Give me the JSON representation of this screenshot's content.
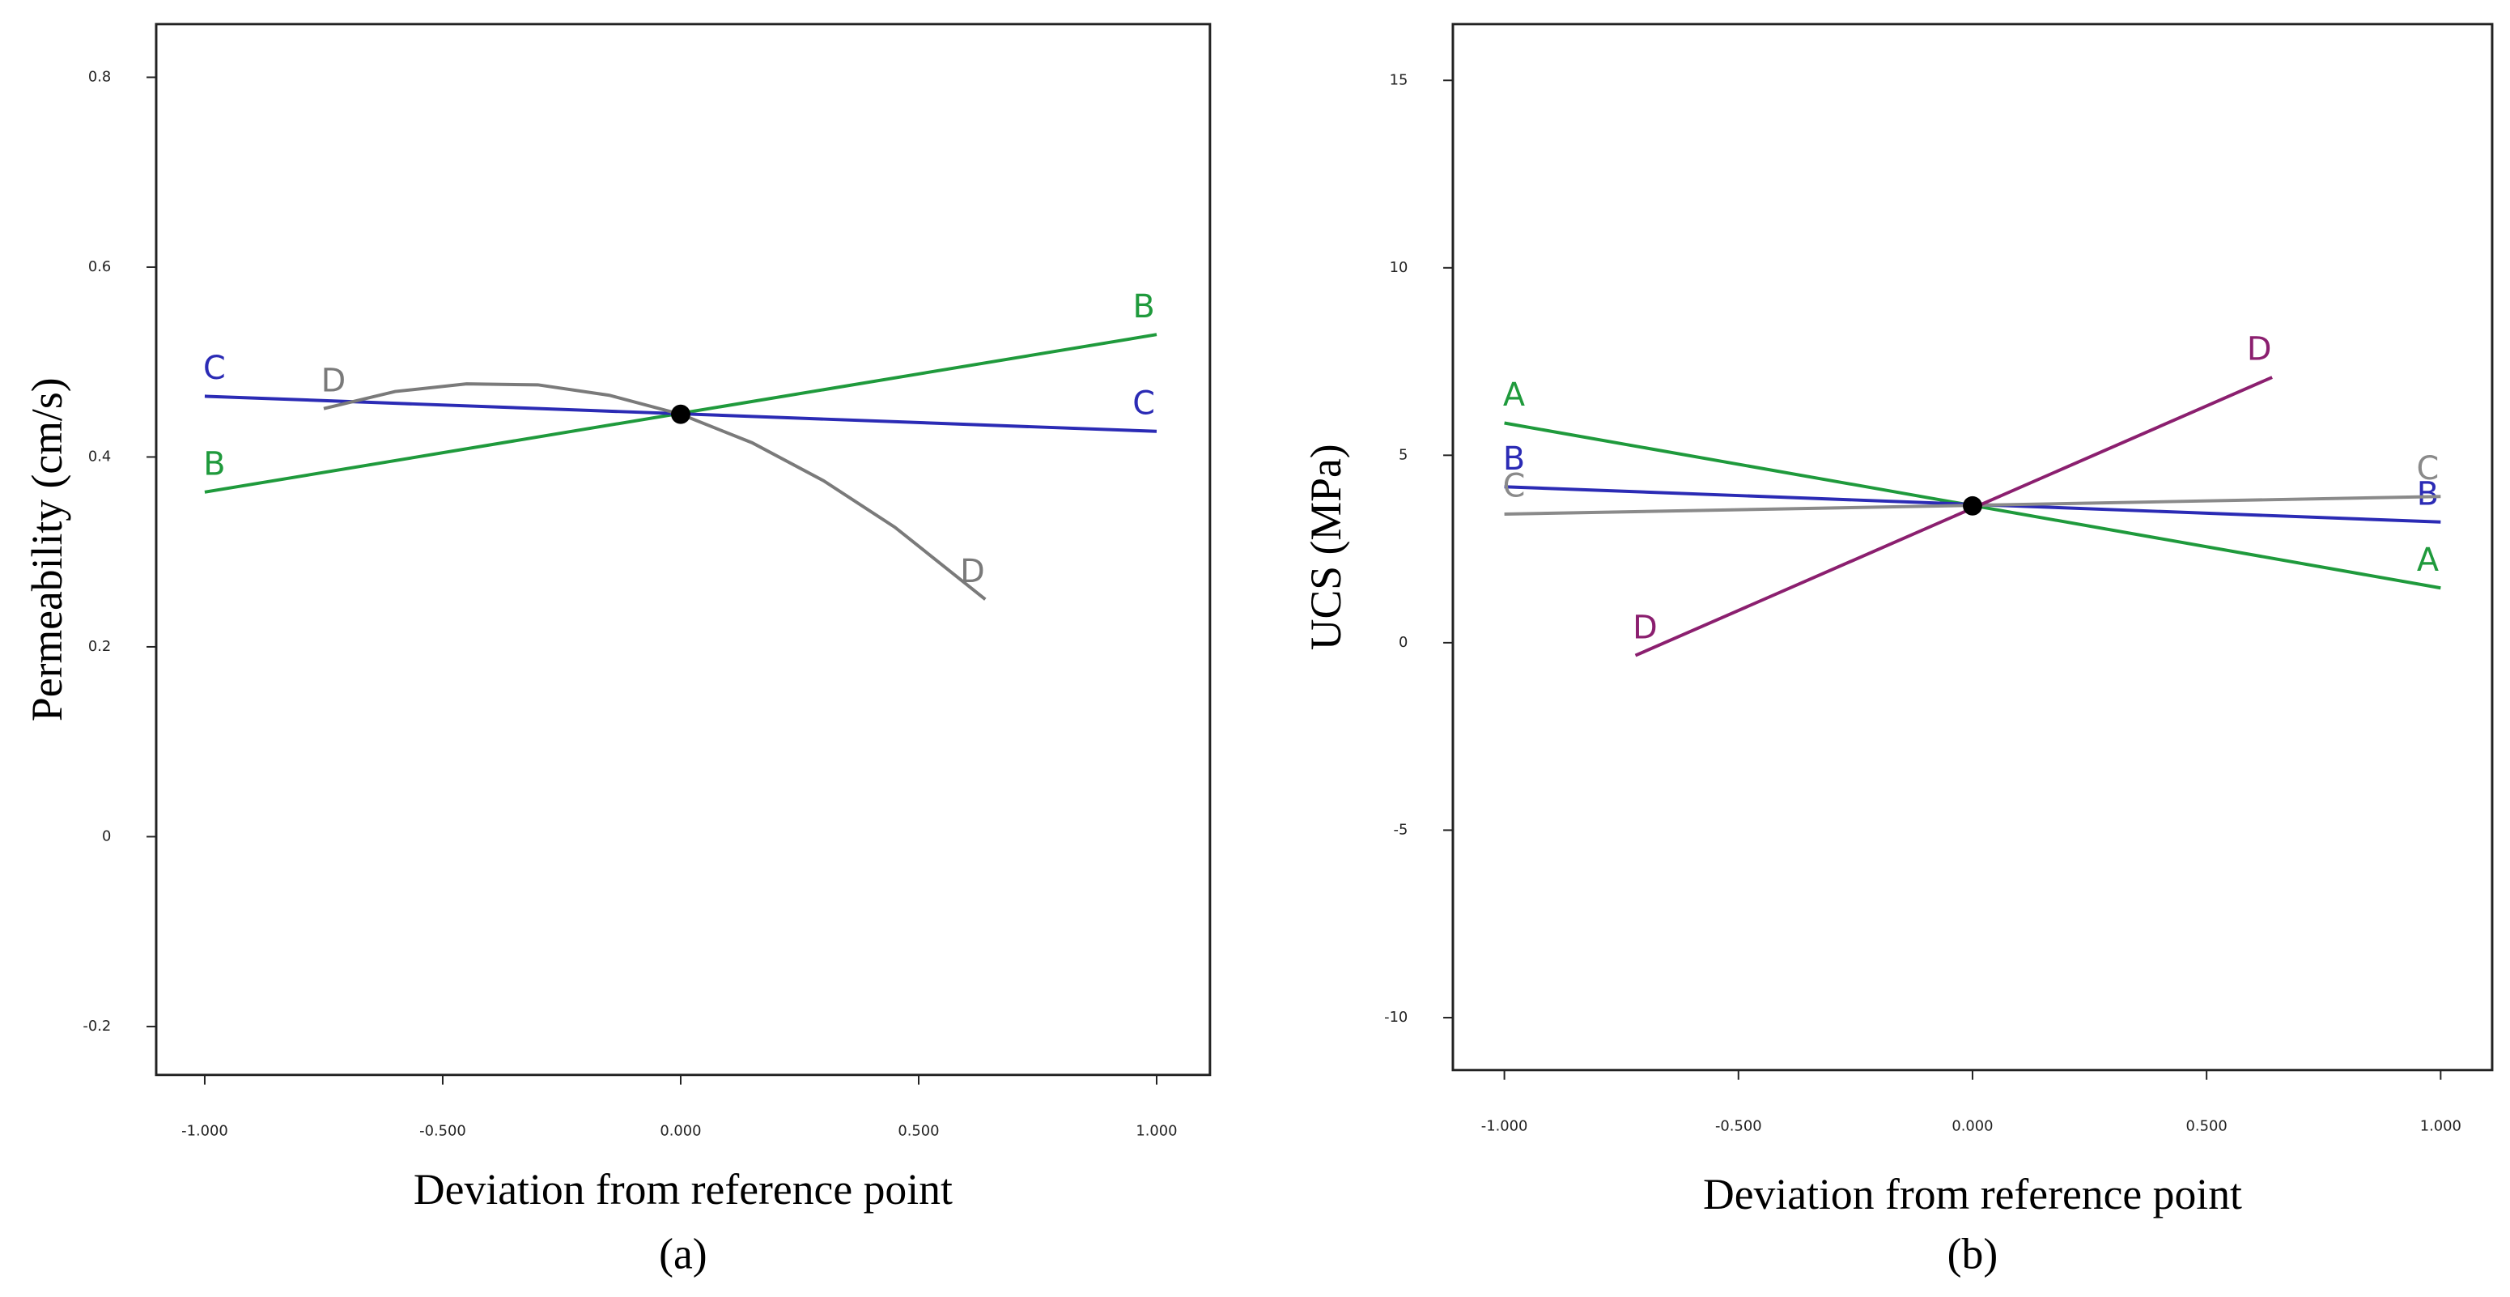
{
  "chart_data": [
    {
      "type": "line",
      "caption": "(a)",
      "x_label": "Deviation from reference point",
      "y_label": "Permeability (cm/s)",
      "xlim": [
        -1.102,
        1.112
      ],
      "ylim": [
        -0.251,
        0.856
      ],
      "xticks": [
        {
          "value": -1,
          "label": "-1.000"
        },
        {
          "value": -0.5,
          "label": "-0.500"
        },
        {
          "value": 0,
          "label": "0.000"
        },
        {
          "value": 0.5,
          "label": "0.500"
        },
        {
          "value": 1,
          "label": "1.000"
        }
      ],
      "yticks": [
        -0.2,
        0,
        0.2,
        0.4,
        0.6,
        0.8
      ],
      "series": [
        {
          "name": "B",
          "color": "#1f9a3c",
          "x": [
            -1,
            1
          ],
          "values": [
            0.363,
            0.529
          ]
        },
        {
          "name": "C",
          "color": "#2b2bb5",
          "x": [
            -1,
            1
          ],
          "values": [
            0.464,
            0.427
          ]
        },
        {
          "name": "D",
          "color": "#7a7a7a",
          "x": [
            -0.75,
            -0.6,
            -0.45,
            -0.3,
            -0.15,
            0,
            0.15,
            0.3,
            0.45,
            0.64
          ],
          "values": [
            0.451,
            0.469,
            0.477,
            0.476,
            0.465,
            0.445,
            0.415,
            0.375,
            0.326,
            0.25
          ]
        }
      ],
      "reference_point": {
        "x": 0,
        "y": 0.445
      }
    },
    {
      "type": "line",
      "caption": "(b)",
      "x_label": "Deviation from reference point",
      "y_label": "UCS (MPa)",
      "xlim": [
        -1.11,
        1.11
      ],
      "ylim": [
        -11.4,
        16.5
      ],
      "xticks": [
        {
          "value": -1,
          "label": "-1.000"
        },
        {
          "value": -0.5,
          "label": "-0.500"
        },
        {
          "value": 0,
          "label": "0.000"
        },
        {
          "value": 0.5,
          "label": "0.500"
        },
        {
          "value": 1,
          "label": "1.000"
        }
      ],
      "yticks": [
        -10,
        -5,
        0,
        5,
        10,
        15
      ],
      "series": [
        {
          "name": "A",
          "color": "#1f9a3c",
          "x": [
            -1,
            1
          ],
          "values": [
            5.86,
            1.46
          ]
        },
        {
          "name": "B",
          "color": "#2b2bb5",
          "x": [
            -1,
            1
          ],
          "values": [
            4.16,
            3.22
          ]
        },
        {
          "name": "C",
          "color": "#8a8a8a",
          "x": [
            -1,
            1
          ],
          "values": [
            3.43,
            3.9
          ]
        },
        {
          "name": "D",
          "color": "#8b1f6f",
          "x": [
            -0.72,
            0.64
          ],
          "values": [
            -0.34,
            7.08
          ]
        }
      ],
      "reference_point": {
        "x": 0,
        "y": 3.65
      }
    }
  ]
}
